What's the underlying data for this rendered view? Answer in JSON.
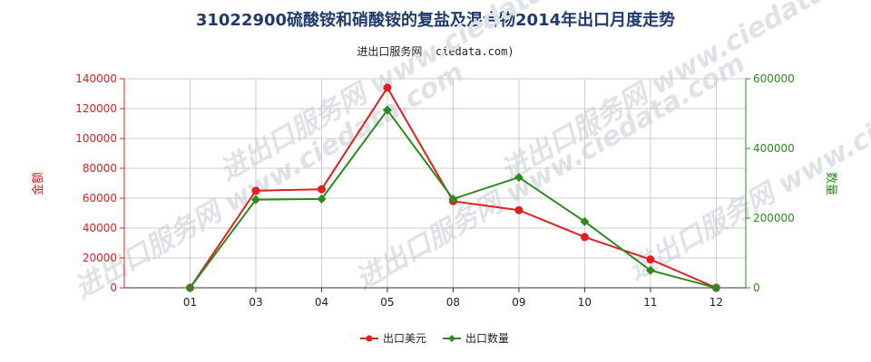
{
  "title": "31022900硫酸铵和硝酸铵的复盐及混合物2014年出口月度走势",
  "subtitle": "进出口服务网 (ciedata.com)",
  "watermark": "进出口服务网 www.ciedata.com",
  "colors": {
    "amount": "#e02020",
    "quantity": "#2c8a1e",
    "title": "#1f3b6e",
    "grid": "#cccccc"
  },
  "chart_data": {
    "type": "line",
    "categories": [
      "01",
      "03",
      "04",
      "05",
      "08",
      "09",
      "10",
      "11",
      "12"
    ],
    "ylabel_left": "金额",
    "ylabel_right": "数量",
    "ylim_left": [
      0,
      140000
    ],
    "ylim_right": [
      0,
      600000
    ],
    "yticks_left": [
      "0",
      "20000",
      "40000",
      "60000",
      "80000",
      "100000",
      "120000",
      "140000"
    ],
    "yticks_right": [
      "0",
      "200000",
      "400000",
      "600000"
    ],
    "grid": true,
    "legend_position": "bottom",
    "series": [
      {
        "name": "出口美元",
        "axis": "left",
        "marker": "circle",
        "values": [
          0,
          65000,
          66000,
          134000,
          58000,
          52000,
          34000,
          19000,
          0
        ]
      },
      {
        "name": "出口数量",
        "axis": "right",
        "marker": "diamond",
        "values": [
          0,
          253000,
          255000,
          510000,
          255000,
          317000,
          190000,
          50000,
          0
        ]
      }
    ]
  }
}
